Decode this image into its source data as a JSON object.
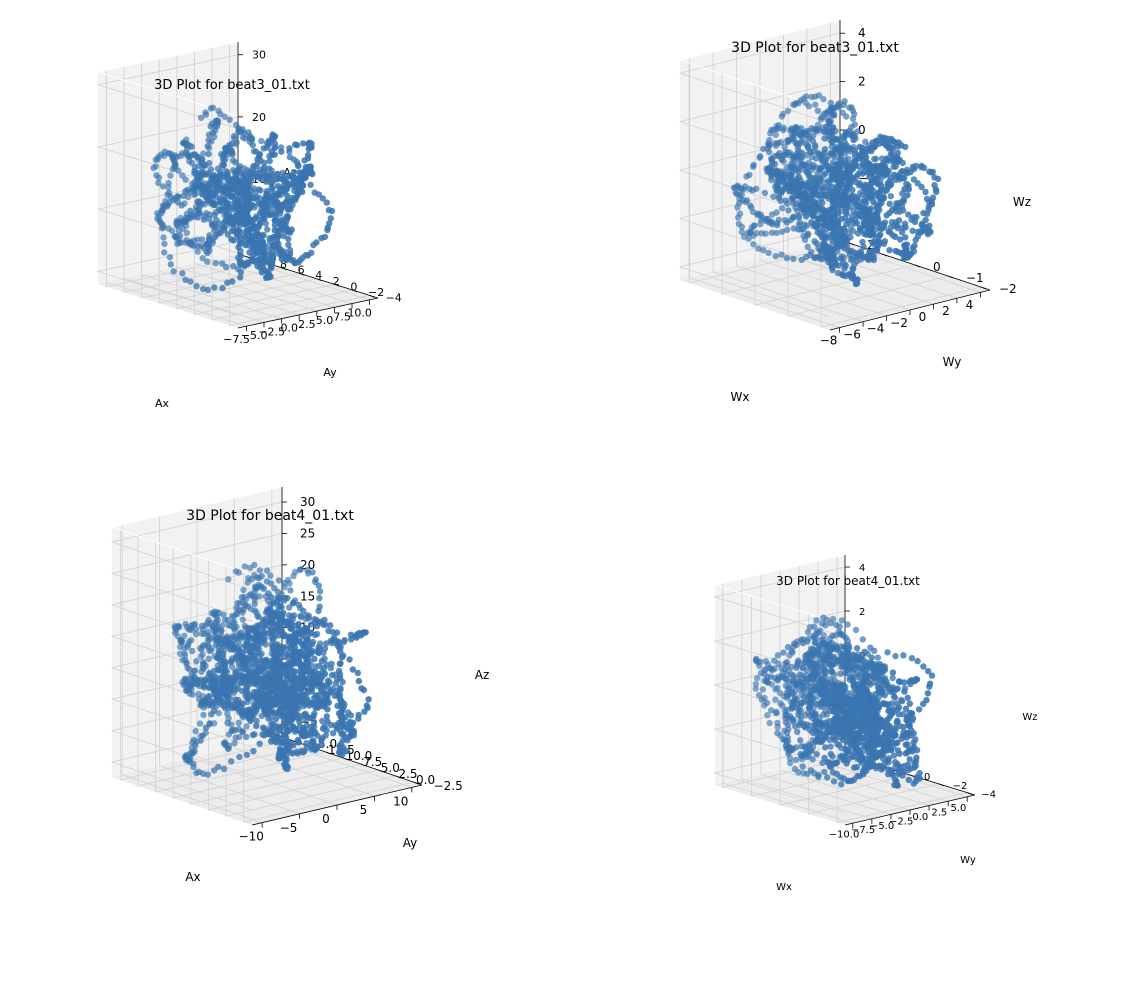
{
  "chart_data": [
    {
      "type": "scatter",
      "title": "3D Plot for beat3_01.txt",
      "xlabel": "Ax",
      "ylabel": "Ay",
      "zlabel": "Az",
      "x_ticks": [
        "−7.5",
        "−5.0",
        "−2.5",
        "0.0",
        "2.5",
        "5.0",
        "7.5",
        "10.0"
      ],
      "y_ticks": [
        "−4",
        "−2",
        "0",
        "2",
        "4",
        "6",
        "8",
        "10"
      ],
      "z_ticks": [
        "0",
        "10",
        "20",
        "30"
      ],
      "xlim": [
        -8.5,
        10.5
      ],
      "ylim": [
        -4.5,
        10.5
      ],
      "zlim": [
        -6,
        36
      ],
      "grid": true,
      "marker_color": "#3a75b0",
      "series": [
        {
          "x_range": [
            -7.5,
            10.5
          ],
          "y_range": [
            -4,
            10
          ],
          "z_range": [
            -5,
            33
          ],
          "approx_points": 1200
        }
      ]
    },
    {
      "type": "scatter",
      "title": "3D Plot for beat3_01.txt",
      "xlabel": "Wx",
      "ylabel": "Wy",
      "zlabel": "Wz",
      "x_ticks": [
        "−8",
        "−6",
        "−4",
        "−2",
        "0",
        "2",
        "4"
      ],
      "y_ticks": [
        "−2",
        "−1",
        "0",
        "1",
        "2"
      ],
      "z_ticks": [
        "−4",
        "−2",
        "0",
        "2",
        "4"
      ],
      "xlim": [
        -9,
        5
      ],
      "ylim": [
        -2.5,
        2.7
      ],
      "zlim": [
        -5.2,
        5
      ],
      "grid": true,
      "marker_color": "#3a75b0",
      "series": [
        {
          "x_range": [
            -8.5,
            4.5
          ],
          "y_range": [
            -2.2,
            2.5
          ],
          "z_range": [
            -4.8,
            4.6
          ],
          "approx_points": 1500
        }
      ]
    },
    {
      "type": "scatter",
      "title": "3D Plot for beat4_01.txt",
      "xlabel": "Ax",
      "ylabel": "Ay",
      "zlabel": "Az",
      "x_ticks": [
        "−10",
        "−5",
        "0",
        "5",
        "10"
      ],
      "y_ticks": [
        "−2.5",
        "0.0",
        "2.5",
        "5.0",
        "7.5",
        "10.0",
        "12.5",
        "15.0"
      ],
      "z_ticks": [
        "−5",
        "0",
        "5",
        "10",
        "15",
        "20",
        "25",
        "30"
      ],
      "xlim": [
        -13,
        12
      ],
      "ylim": [
        -3.5,
        16.5
      ],
      "zlim": [
        -7,
        32
      ],
      "grid": true,
      "marker_color": "#3a75b0",
      "series": [
        {
          "x_range": [
            -12,
            11
          ],
          "y_range": [
            -3,
            16
          ],
          "z_range": [
            -6,
            31
          ],
          "approx_points": 1800
        }
      ]
    },
    {
      "type": "scatter",
      "title": "3D Plot for beat4_01.txt",
      "xlabel": "Wx",
      "ylabel": "Wy",
      "zlabel": "Wz",
      "x_ticks": [
        "−10.0",
        "−7.5",
        "−5.0",
        "−2.5",
        "0.0",
        "2.5",
        "5.0"
      ],
      "y_ticks": [
        "−4",
        "−2",
        "0",
        "2",
        "4"
      ],
      "z_ticks": [
        "−4",
        "−2",
        "0",
        "2",
        "4"
      ],
      "xlim": [
        -11,
        6
      ],
      "ylim": [
        -4.6,
        5
      ],
      "zlim": [
        -5,
        5
      ],
      "grid": true,
      "marker_color": "#3a75b0",
      "series": [
        {
          "x_range": [
            -10.5,
            5.5
          ],
          "y_range": [
            -4.2,
            4.6
          ],
          "z_range": [
            -4.6,
            4.6
          ],
          "approx_points": 1500
        }
      ]
    }
  ]
}
